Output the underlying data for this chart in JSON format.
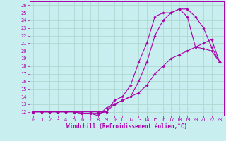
{
  "xlabel": "Windchill (Refroidissement éolien,°C)",
  "bg_color": "#c8eef0",
  "grid_color": "#b0d8d0",
  "line_color": "#aa00aa",
  "xlim": [
    -0.5,
    23.5
  ],
  "ylim": [
    11.5,
    26.5
  ],
  "xticks": [
    0,
    1,
    2,
    3,
    4,
    5,
    6,
    7,
    8,
    9,
    10,
    11,
    12,
    13,
    14,
    15,
    16,
    17,
    18,
    19,
    20,
    21,
    22,
    23
  ],
  "yticks": [
    12,
    13,
    14,
    15,
    16,
    17,
    18,
    19,
    20,
    21,
    22,
    23,
    24,
    25,
    26
  ],
  "series1_x": [
    0,
    1,
    2,
    3,
    4,
    5,
    6,
    7,
    8,
    9,
    10,
    11,
    12,
    13,
    14,
    15,
    16,
    17,
    18,
    19,
    20,
    21,
    22,
    23
  ],
  "series1_y": [
    12,
    12,
    12,
    12,
    12,
    12,
    12,
    12,
    12,
    12,
    13,
    13.5,
    14,
    14.5,
    15.5,
    17,
    18,
    19,
    19.5,
    20,
    20.5,
    21,
    21.5,
    18.5
  ],
  "series2_x": [
    0,
    1,
    2,
    3,
    4,
    5,
    6,
    7,
    8,
    9,
    10,
    11,
    12,
    13,
    14,
    15,
    16,
    17,
    18,
    19,
    20,
    21,
    22,
    23
  ],
  "series2_y": [
    12,
    12,
    12,
    12,
    12,
    12,
    11.8,
    11.8,
    11.8,
    12,
    13.5,
    14,
    15.5,
    18.5,
    21,
    24.5,
    25,
    25,
    25.5,
    24.5,
    20.5,
    20.3,
    20,
    18.5
  ],
  "series3_x": [
    0,
    1,
    2,
    3,
    4,
    5,
    6,
    7,
    8,
    9,
    10,
    11,
    12,
    13,
    14,
    15,
    16,
    17,
    18,
    19,
    20,
    21,
    22,
    23
  ],
  "series3_y": [
    12,
    12,
    12,
    12,
    12,
    12,
    11.8,
    11.8,
    11.5,
    12.5,
    13,
    13.5,
    14,
    16,
    18.5,
    22,
    24,
    25,
    25.5,
    25.5,
    24.5,
    23,
    20.5,
    18.5
  ],
  "tick_fontsize": 5.0,
  "xlabel_fontsize": 5.5,
  "marker_size": 1.8,
  "line_width": 0.8
}
